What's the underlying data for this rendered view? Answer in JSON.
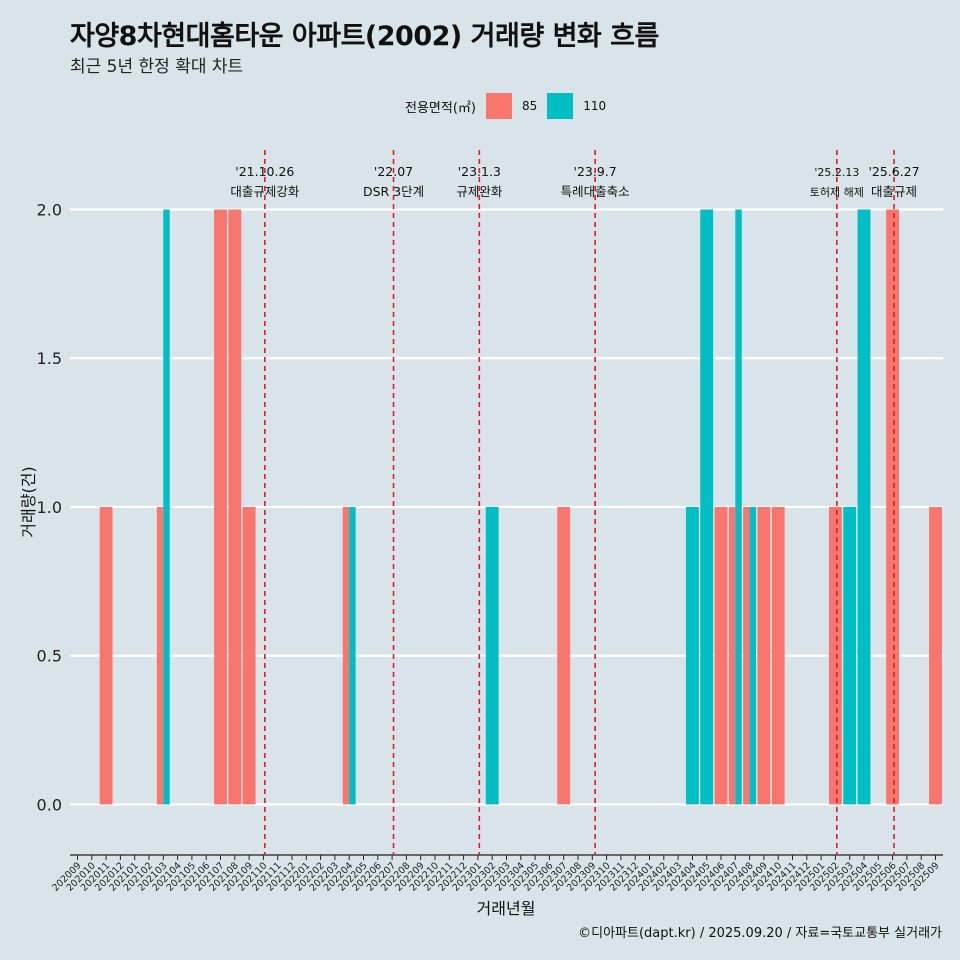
{
  "title": "자양8차현대홈타운 아파트(2002) 거래량 변화 흐름",
  "subtitle": "최근 5년 한정 확대 차트",
  "legend": {
    "title": "전용면적(㎡)",
    "items": [
      {
        "label": "85",
        "color": "#F8766D"
      },
      {
        "label": "110",
        "color": "#00BFC4"
      }
    ]
  },
  "caption": "©디아파트(dapt.kr) / 2025.09.20 / 자료=국토교통부 실거래가",
  "chart_data": {
    "type": "bar",
    "xlabel": "거래년월",
    "ylabel": "거래량(건)",
    "ylim": [
      -0.17,
      2.2
    ],
    "yticks": [
      0.0,
      0.5,
      1.0,
      1.5,
      2.0
    ],
    "ytick_labels": [
      "0.0",
      "0.5",
      "1.0",
      "1.5",
      "2.0"
    ],
    "categories": [
      "202009",
      "202010",
      "202011",
      "202012",
      "202101",
      "202102",
      "202103",
      "202104",
      "202105",
      "202106",
      "202107",
      "202108",
      "202109",
      "202110",
      "202111",
      "202112",
      "202201",
      "202202",
      "202203",
      "202204",
      "202205",
      "202206",
      "202207",
      "202208",
      "202209",
      "202210",
      "202211",
      "202212",
      "202301",
      "202302",
      "202303",
      "202304",
      "202305",
      "202306",
      "202307",
      "202308",
      "202309",
      "202310",
      "202311",
      "202312",
      "202401",
      "202402",
      "202403",
      "202404",
      "202405",
      "202406",
      "202407",
      "202408",
      "202409",
      "202410",
      "202411",
      "202412",
      "202501",
      "202502",
      "202503",
      "202504",
      "202505",
      "202506",
      "202507",
      "202508",
      "202509"
    ],
    "series": [
      {
        "name": "85",
        "color": "#F8766D",
        "values": [
          0,
          0,
          1,
          0,
          0,
          0,
          1,
          0,
          0,
          0,
          2,
          2,
          1,
          0,
          0,
          0,
          0,
          0,
          0,
          1,
          0,
          0,
          0,
          0,
          0,
          0,
          0,
          0,
          0,
          0,
          0,
          0,
          0,
          0,
          1,
          0,
          0,
          0,
          0,
          0,
          0,
          0,
          0,
          0,
          0,
          1,
          1,
          1,
          1,
          1,
          0,
          0,
          0,
          1,
          0,
          0,
          0,
          2,
          0,
          0,
          1
        ]
      },
      {
        "name": "110",
        "color": "#00BFC4",
        "values": [
          0,
          0,
          0,
          0,
          0,
          0,
          2,
          0,
          0,
          0,
          0,
          0,
          0,
          0,
          0,
          0,
          0,
          0,
          0,
          1,
          0,
          0,
          0,
          0,
          0,
          0,
          0,
          0,
          0,
          1,
          0,
          0,
          0,
          0,
          0,
          0,
          0,
          0,
          0,
          0,
          0,
          0,
          0,
          1,
          2,
          0,
          2,
          1,
          0,
          0,
          0,
          0,
          0,
          0,
          1,
          2,
          0,
          0,
          0,
          0,
          0
        ]
      }
    ],
    "events": [
      {
        "date": "'21.10.26",
        "label": "대출규제강화",
        "x": 13.1
      },
      {
        "date": "'22.07",
        "label": "DSR 3단계",
        "x": 22.1
      },
      {
        "date": "'23.1.3",
        "label": "규제완화",
        "x": 28.1
      },
      {
        "date": "'23.9.7",
        "label": "특례대출축소",
        "x": 36.2
      },
      {
        "date": "'25.2.13",
        "label": "토허제 해제",
        "x": 53.1
      },
      {
        "date": "'25.6.27",
        "label": "대출규제",
        "x": 57.1
      }
    ]
  }
}
